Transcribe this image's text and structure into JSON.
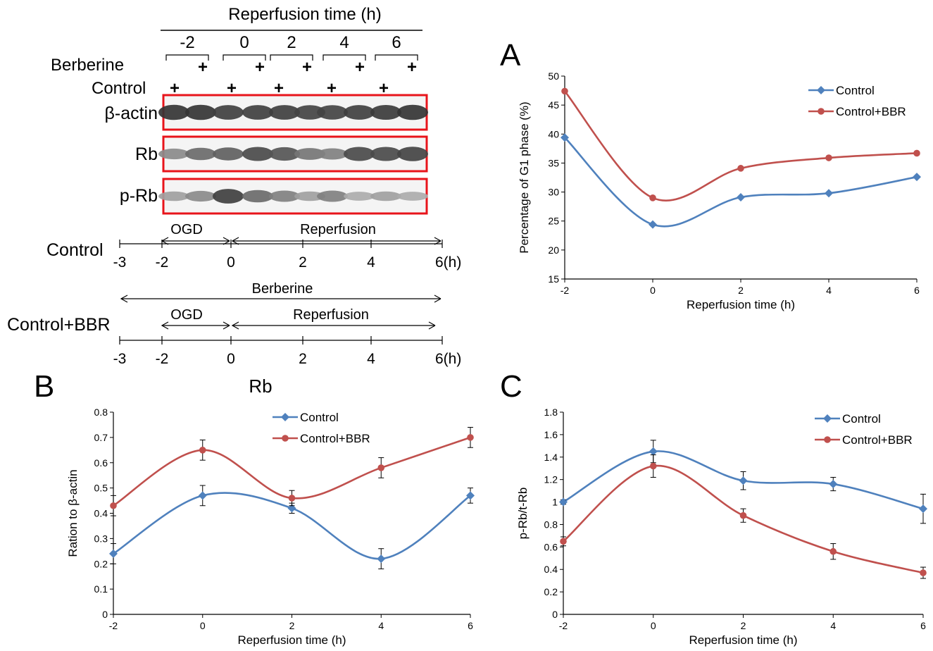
{
  "colors": {
    "control": "#4f81bd",
    "bbr": "#c0504d",
    "blot_frame": "#e8141b",
    "axis": "#000000"
  },
  "panel_labels": {
    "a": "A",
    "b": "B",
    "c": "C"
  },
  "blot": {
    "header": "Reperfusion time (h)",
    "time_labels": [
      "-2",
      "0",
      "2",
      "4",
      "6"
    ],
    "row_labels": {
      "berberine": "Berberine",
      "control": "Control"
    },
    "plus": "+",
    "bands": [
      "β-actin",
      "Rb",
      "p-Rb"
    ],
    "band_intensity": {
      "beta_actin": [
        0.85,
        0.85,
        0.8,
        0.8,
        0.8,
        0.78,
        0.78,
        0.8,
        0.82,
        0.85
      ],
      "rb": [
        0.45,
        0.6,
        0.65,
        0.75,
        0.7,
        0.55,
        0.5,
        0.75,
        0.75,
        0.78
      ],
      "p_rb": [
        0.35,
        0.45,
        0.8,
        0.6,
        0.5,
        0.35,
        0.5,
        0.3,
        0.35,
        0.3
      ]
    }
  },
  "timeline": {
    "ogd": "OGD",
    "reperfusion": "Reperfusion",
    "berberine": "Berberine",
    "group_control": "Control",
    "group_bbr": "Control+BBR",
    "ticks": [
      "-3",
      "-2",
      "0",
      "2",
      "4",
      "6(h)"
    ]
  },
  "chart_data": [
    {
      "id": "A",
      "type": "line",
      "xlabel": "Reperfusion time (h)",
      "ylabel": "Percentage of G1 phase (%)",
      "x": [
        -2,
        0,
        2,
        4,
        6
      ],
      "xlim": [
        -2,
        6
      ],
      "ylim": [
        15,
        50
      ],
      "yticks": [
        15,
        20,
        25,
        30,
        35,
        40,
        45,
        50
      ],
      "ytick_labels": [
        "15",
        "20",
        "25",
        "30",
        "35",
        "40",
        "45",
        "50"
      ],
      "xtick_labels": [
        "-2",
        "0",
        "2",
        "4",
        "6"
      ],
      "legend_position": "top-right",
      "series": [
        {
          "name": "Control",
          "values": [
            39.4,
            24.4,
            29.1,
            29.8,
            32.6
          ]
        },
        {
          "name": "Control+BBR",
          "values": [
            47.4,
            29.0,
            34.1,
            35.9,
            36.7
          ]
        }
      ]
    },
    {
      "id": "B",
      "type": "line",
      "title": "Rb",
      "xlabel": "Reperfusion time (h)",
      "ylabel": "Ration to β-actin",
      "x": [
        -2,
        0,
        2,
        4,
        6
      ],
      "xlim": [
        -2,
        6
      ],
      "ylim": [
        0,
        0.8
      ],
      "yticks": [
        0,
        0.1,
        0.2,
        0.3,
        0.4,
        0.5,
        0.6,
        0.7,
        0.8
      ],
      "ytick_labels": [
        "0",
        "0.1",
        "0.2",
        "0.3",
        "0.4",
        "0.5",
        "0.6",
        "0.7",
        "0.8"
      ],
      "xtick_labels": [
        "-2",
        "0",
        "2",
        "4",
        "6"
      ],
      "legend_position": "top-center",
      "series": [
        {
          "name": "Control",
          "values": [
            0.24,
            0.47,
            0.42,
            0.22,
            0.47
          ],
          "errors": [
            0.04,
            0.04,
            0.02,
            0.04,
            0.03
          ]
        },
        {
          "name": "Control+BBR",
          "values": [
            0.43,
            0.65,
            0.46,
            0.58,
            0.7
          ],
          "errors": [
            0.04,
            0.04,
            0.03,
            0.04,
            0.04
          ]
        }
      ]
    },
    {
      "id": "C",
      "type": "line",
      "xlabel": "Reperfusion time (h)",
      "ylabel": "p-Rb/t-Rb",
      "x": [
        -2,
        0,
        2,
        4,
        6
      ],
      "xlim": [
        -2,
        6
      ],
      "ylim": [
        0,
        1.8
      ],
      "yticks": [
        0,
        0.2,
        0.4,
        0.6,
        0.8,
        1.0,
        1.2,
        1.4,
        1.6,
        1.8
      ],
      "ytick_labels": [
        "0",
        "0.2",
        "0.4",
        "0.6",
        "0.8",
        "1",
        "1.2",
        "1.4",
        "1.6",
        "1.8"
      ],
      "xtick_labels": [
        "-2",
        "0",
        "2",
        "4",
        "6"
      ],
      "legend_position": "top-right",
      "series": [
        {
          "name": "Control",
          "values": [
            1.0,
            1.45,
            1.19,
            1.16,
            0.94
          ],
          "errors": [
            0.02,
            0.1,
            0.08,
            0.06,
            0.13
          ]
        },
        {
          "name": "Control+BBR",
          "values": [
            0.65,
            1.32,
            0.88,
            0.56,
            0.37
          ],
          "errors": [
            0.04,
            0.1,
            0.06,
            0.07,
            0.05
          ]
        }
      ]
    }
  ]
}
